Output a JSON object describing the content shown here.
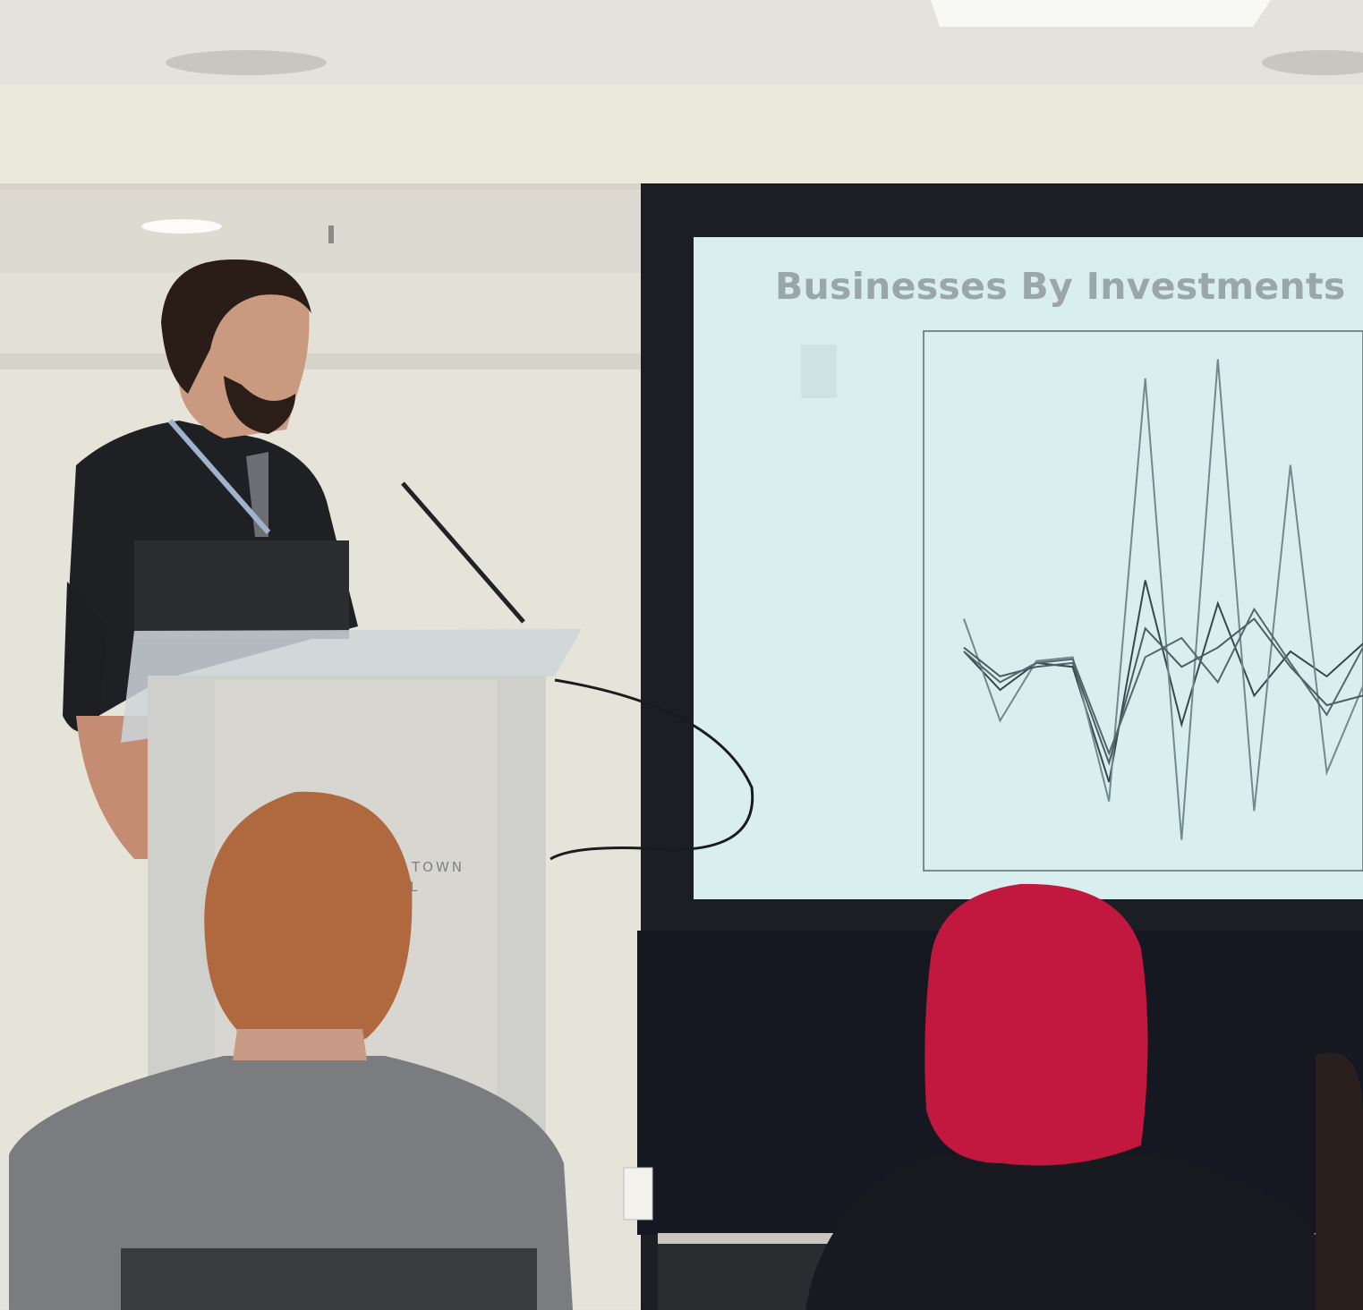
{
  "scene": "presenter at podium in front of projection screen",
  "slide": {
    "title": "Businesses By Investments"
  },
  "podium": {
    "text_line1": "TOWN",
    "text_line2": "L"
  },
  "colors": {
    "screen": "#d9efef",
    "hijab": "#c2173e",
    "wall": "#e9e7da",
    "screen_frame": "#1b1e22"
  },
  "chart_data": {
    "type": "line",
    "title": "",
    "xlabel": "",
    "ylabel": "",
    "series": [
      {
        "values": [
          0.08,
          -0.12,
          0.02,
          0.0,
          -0.6,
          0.45,
          -0.3,
          0.33,
          -0.15,
          0.08,
          -0.05,
          0.12
        ]
      },
      {
        "values": [
          0.25,
          -0.28,
          0.03,
          0.05,
          -0.7,
          1.5,
          -0.9,
          1.6,
          -0.75,
          1.05,
          -0.55,
          -0.1
        ]
      },
      {
        "values": [
          0.1,
          -0.05,
          0.0,
          0.02,
          -0.5,
          0.2,
          0.0,
          0.1,
          0.25,
          0.0,
          -0.2,
          -0.15
        ]
      },
      {
        "values": [
          0.08,
          -0.08,
          0.02,
          0.04,
          -0.45,
          0.05,
          0.15,
          -0.08,
          0.3,
          0.02,
          -0.25,
          0.1
        ]
      }
    ]
  }
}
